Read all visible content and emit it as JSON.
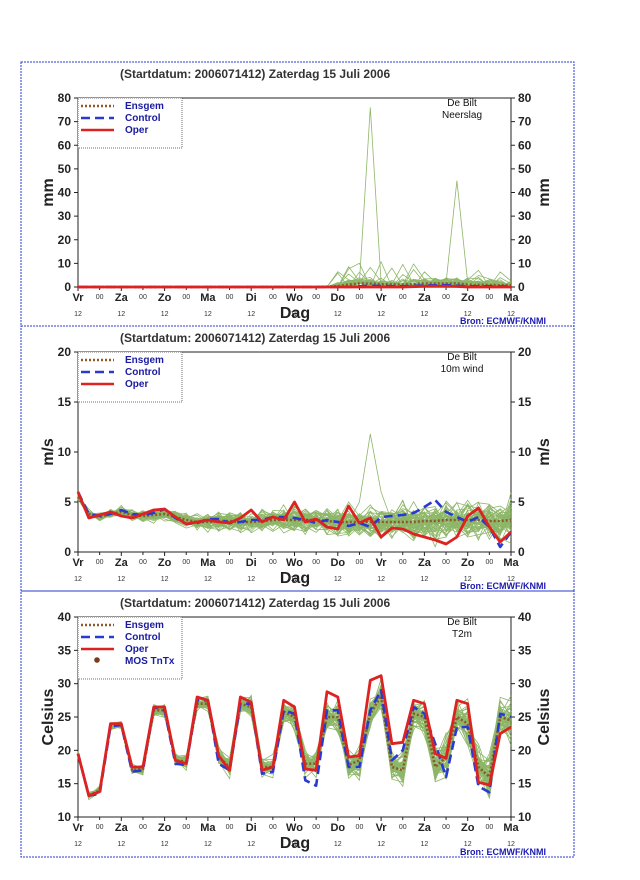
{
  "colors": {
    "ensemble": "#7aaa4e",
    "ensgem": "#8b5a2b",
    "control": "#2a3ad0",
    "oper": "#dd2222",
    "mos": "#7a3b1e",
    "frame": "#2a3ad0"
  },
  "panels": [
    {
      "title": "(Startdatum: 2006071412)   Zaterdag  15 Juli      2006",
      "station": "De Bilt",
      "variable": "Neerslag",
      "ylabel": "mm",
      "ylim": [
        0,
        80
      ],
      "yticks": [
        "0",
        "10",
        "20",
        "30",
        "40",
        "50",
        "60",
        "70",
        "80"
      ],
      "days": [
        "Vr",
        "Za",
        "Zo",
        "Ma",
        "Di",
        "Wo",
        "Do",
        "Vr",
        "Za",
        "Zo",
        "Ma"
      ],
      "hour_marker": "00",
      "hour12": "12",
      "xlabel": "Dag",
      "legend": [
        "Ensgem",
        "Control",
        "Oper"
      ],
      "source": "Bron: ECMWF/KNMI"
    },
    {
      "title": "(Startdatum: 2006071412)   Zaterdag  15 Juli      2006",
      "station": "De Bilt",
      "variable": "10m wind",
      "ylabel": "m/s",
      "ylim": [
        0,
        20
      ],
      "yticks": [
        "0",
        "5",
        "10",
        "15",
        "20"
      ],
      "days": [
        "Vr",
        "Za",
        "Zo",
        "Ma",
        "Di",
        "Wo",
        "Do",
        "Vr",
        "Za",
        "Zo",
        "Ma"
      ],
      "hour_marker": "00",
      "hour12": "12",
      "xlabel": "Dag",
      "legend": [
        "Ensgem",
        "Control",
        "Oper"
      ],
      "source": "Bron: ECMWF/KNMI"
    },
    {
      "title": "(Startdatum: 2006071412)   Zaterdag  15 Juli      2006",
      "station": "De Bilt",
      "variable": "T2m",
      "ylabel": "Celsius",
      "ylim": [
        10,
        40
      ],
      "yticks": [
        "10",
        "15",
        "20",
        "25",
        "30",
        "35",
        "40"
      ],
      "days": [
        "Vr",
        "Za",
        "Zo",
        "Ma",
        "Di",
        "Wo",
        "Do",
        "Vr",
        "Za",
        "Zo",
        "Ma"
      ],
      "hour_marker": "00",
      "hour12": "12",
      "xlabel": "Dag",
      "legend": [
        "Ensgem",
        "Control",
        "Oper",
        "MOS TnTx"
      ],
      "source": "Bron: ECMWF/KNMI"
    }
  ],
  "chart_data": [
    {
      "type": "line",
      "title": "(Startdatum: 2006071412)   Zaterdag  15 Juli      2006",
      "ylabel": "mm",
      "xlabel": "Dag",
      "ylim": [
        0,
        80
      ],
      "x_days": [
        0,
        0.5,
        1,
        1.5,
        2,
        2.5,
        3,
        3.5,
        4,
        4.5,
        5,
        5.5,
        6,
        6.25,
        6.5,
        6.75,
        7,
        7.5,
        8,
        8.5,
        8.75,
        9,
        9.5,
        10
      ],
      "series": [
        {
          "name": "Ensgem",
          "values": [
            0,
            0,
            0,
            0,
            0,
            0,
            0,
            0,
            0,
            0,
            0,
            0,
            0.3,
            1,
            1.5,
            1.5,
            1.2,
            1,
            1.5,
            1.5,
            1.5,
            1,
            0.8,
            0.7
          ]
        },
        {
          "name": "Control",
          "values": [
            0,
            0,
            0,
            0,
            0,
            0,
            0,
            0,
            0,
            0,
            0,
            0,
            0,
            0,
            0.3,
            0.5,
            0.4,
            0.3,
            0.6,
            0.8,
            0.5,
            0.3,
            0.3,
            0.2
          ]
        },
        {
          "name": "Oper",
          "values": [
            0,
            0,
            0,
            0,
            0,
            0,
            0,
            0,
            0,
            0,
            0,
            0,
            0,
            0,
            0,
            0,
            0,
            0,
            0.3,
            0.3,
            0.2,
            0,
            0,
            0
          ]
        }
      ],
      "max_member_peaks": [
        {
          "x_day": 6.75,
          "value": 76
        },
        {
          "x_day": 8.75,
          "value": 45
        }
      ]
    },
    {
      "type": "line",
      "title": "(Startdatum: 2006071412)   Zaterdag  15 Juli      2006",
      "ylabel": "m/s",
      "xlabel": "Dag",
      "ylim": [
        0,
        20
      ],
      "x_days": [
        0,
        0.25,
        0.5,
        0.75,
        1,
        1.25,
        1.5,
        1.75,
        2,
        2.25,
        2.5,
        2.75,
        3,
        3.25,
        3.5,
        3.75,
        4,
        4.25,
        4.5,
        4.75,
        5,
        5.25,
        5.5,
        5.75,
        6,
        6.25,
        6.5,
        6.75,
        7,
        7.25,
        7.5,
        7.75,
        8,
        8.25,
        8.5,
        8.75,
        9,
        9.25,
        9.5,
        9.75,
        10
      ],
      "series": [
        {
          "name": "Ensgem",
          "values": [
            5.5,
            3.8,
            3.5,
            3.8,
            4,
            3.7,
            3.6,
            3.7,
            3.8,
            3.5,
            3.2,
            3,
            3,
            3.1,
            3.1,
            3,
            3,
            3.1,
            3.2,
            3.2,
            3.2,
            3.2,
            3.2,
            3.1,
            3,
            3,
            3,
            3,
            3,
            3,
            3,
            3,
            3.1,
            3.1,
            3.2,
            3.2,
            3.2,
            3.2,
            3.1,
            3.1,
            3.2
          ]
        },
        {
          "name": "Control",
          "values": [
            6,
            3.8,
            3.6,
            3.8,
            4.2,
            3.8,
            3.7,
            3.9,
            4.3,
            3.4,
            2.8,
            2.9,
            3.3,
            3.3,
            2.9,
            3,
            3.2,
            3.2,
            3.5,
            3.5,
            3.4,
            3.2,
            2.9,
            3.2,
            3,
            2.6,
            2.9,
            2.5,
            3.5,
            3.6,
            3.7,
            3.9,
            4.5,
            5.2,
            4,
            3.5,
            3,
            3.5,
            2.5,
            0.5,
            2
          ]
        },
        {
          "name": "Oper",
          "values": [
            6,
            3.4,
            3.7,
            4,
            3.6,
            3.4,
            3.8,
            4.2,
            4.3,
            3.5,
            2.8,
            3,
            3.2,
            3,
            2.9,
            3.4,
            4.2,
            3,
            3.5,
            3.2,
            5,
            3,
            3.3,
            2.5,
            2.3,
            4.6,
            2.9,
            3.4,
            1.5,
            2.4,
            2.3,
            1.8,
            1.5,
            1.2,
            0.8,
            1.5,
            3.6,
            4.4,
            2.5,
            1,
            2
          ]
        }
      ],
      "max_member_peak": {
        "x_day": 6.75,
        "value": 11.8
      }
    },
    {
      "type": "line",
      "title": "(Startdatum: 2006071412)   Zaterdag  15 Juli      2006",
      "ylabel": "Celsius",
      "xlabel": "Dag",
      "ylim": [
        10,
        40
      ],
      "x_days": [
        0,
        0.25,
        0.5,
        0.75,
        1,
        1.25,
        1.5,
        1.75,
        2,
        2.25,
        2.5,
        2.75,
        3,
        3.25,
        3.5,
        3.75,
        4,
        4.25,
        4.5,
        4.75,
        5,
        5.25,
        5.5,
        5.75,
        6,
        6.25,
        6.5,
        6.75,
        7,
        7.25,
        7.5,
        7.75,
        8,
        8.25,
        8.5,
        8.75,
        9,
        9.25,
        9.5,
        9.75,
        10
      ],
      "series": [
        {
          "name": "Ensgem",
          "values": [
            19.5,
            13.2,
            14,
            23.6,
            23.8,
            17,
            17.2,
            26,
            26,
            18.5,
            18.3,
            27,
            27,
            19,
            17.5,
            27,
            26.5,
            17.5,
            17.5,
            25.8,
            25,
            18,
            18,
            25,
            25,
            17.8,
            18.5,
            25.5,
            28.2,
            17.5,
            17,
            25.5,
            25,
            17.5,
            19,
            25,
            24,
            17.5,
            16,
            25,
            24.5
          ]
        },
        {
          "name": "Control",
          "values": [
            19.5,
            13.2,
            13.5,
            23.6,
            23.8,
            16.8,
            17,
            26.5,
            26,
            18,
            17.8,
            27.5,
            27.5,
            18,
            17,
            27,
            27,
            16.5,
            16.8,
            26,
            25.5,
            15.5,
            14.7,
            26,
            26,
            17.5,
            17.5,
            26,
            29,
            18.5,
            20,
            26.5,
            25.5,
            21,
            16,
            23.5,
            23.5,
            14.6,
            13.7,
            25.5,
            25
          ]
        },
        {
          "name": "Oper",
          "values": [
            19.5,
            13.2,
            13.8,
            24,
            24,
            17.5,
            17.5,
            26.5,
            26.5,
            18.5,
            18,
            28,
            27.5,
            19.2,
            17,
            28,
            27.2,
            17,
            17.5,
            27.5,
            26.5,
            17.2,
            17,
            28.8,
            28,
            19,
            19.2,
            30.5,
            31.2,
            21,
            21.2,
            27.5,
            27,
            19.5,
            18.8,
            27.5,
            27,
            15.2,
            14.8,
            22.5,
            23.5
          ]
        }
      ]
    }
  ]
}
